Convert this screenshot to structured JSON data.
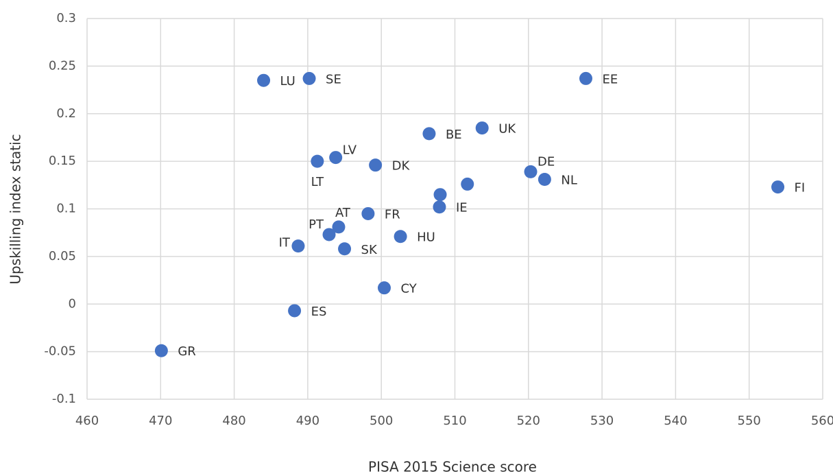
{
  "chart_data": {
    "type": "scatter",
    "xlabel": "PISA 2015 Science score",
    "ylabel": "Upskilling index static",
    "color": "#4472c4",
    "grid": true,
    "xlim": [
      460,
      560
    ],
    "xticks": [
      460,
      470,
      480,
      490,
      500,
      510,
      520,
      530,
      540,
      550,
      560
    ],
    "ylim": [
      -0.1,
      0.3
    ],
    "yticks": [
      -0.1,
      -0.05,
      0,
      0.05,
      0.1,
      0.15,
      0.2,
      0.25,
      0.3
    ],
    "labels": [
      "LU",
      "SE",
      "EE",
      "BE",
      "UK",
      "LV",
      "LT",
      "DK",
      "DE",
      "NL",
      "FI",
      null,
      null,
      "IE",
      "FR",
      "AT",
      "PT",
      "HU",
      "IT",
      "SK",
      "CY",
      "ES",
      "GR"
    ],
    "x": [
      484.0,
      490.2,
      527.8,
      506.5,
      513.7,
      493.8,
      491.3,
      499.2,
      520.3,
      522.2,
      553.9,
      511.7,
      508.0,
      507.9,
      498.2,
      494.2,
      492.9,
      502.6,
      488.7,
      495.0,
      500.4,
      488.2,
      470.1
    ],
    "values": [
      0.235,
      0.237,
      0.237,
      0.179,
      0.185,
      0.154,
      0.15,
      0.146,
      0.139,
      0.131,
      0.123,
      0.126,
      0.115,
      0.102,
      0.095,
      0.081,
      0.073,
      0.071,
      0.061,
      0.058,
      0.017,
      -0.007,
      -0.049
    ]
  }
}
